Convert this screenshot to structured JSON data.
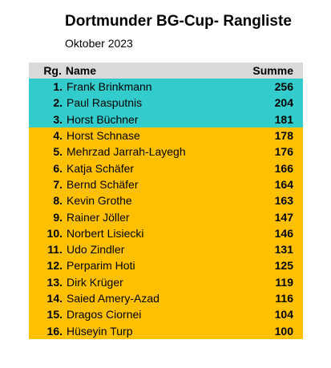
{
  "title": "Dortmunder BG-Cup- Rangliste",
  "subtitle": "Oktober 2023",
  "columns": {
    "rank": "Rg.",
    "name": "Name",
    "sum": "Summe"
  },
  "rows": [
    {
      "rank": "1.",
      "name": "Frank Brinkmann",
      "sum": "256"
    },
    {
      "rank": "2.",
      "name": "Paul Rasputnis",
      "sum": "204"
    },
    {
      "rank": "3.",
      "name": "Horst Büchner",
      "sum": "181"
    },
    {
      "rank": "4.",
      "name": "Horst Schnase",
      "sum": "178"
    },
    {
      "rank": "5.",
      "name": "Mehrzad Jarrah-Layegh",
      "sum": "176"
    },
    {
      "rank": "6.",
      "name": "Katja Schäfer",
      "sum": "166"
    },
    {
      "rank": "7.",
      "name": "Bernd Schäfer",
      "sum": "164"
    },
    {
      "rank": "8.",
      "name": "Kevin Grothe",
      "sum": "163"
    },
    {
      "rank": "9.",
      "name": "Rainer Jöller",
      "sum": "147"
    },
    {
      "rank": "10.",
      "name": "Norbert Lisiecki",
      "sum": "146"
    },
    {
      "rank": "11.",
      "name": "Udo Zindler",
      "sum": "131"
    },
    {
      "rank": "12.",
      "name": "Perparim Hoti",
      "sum": "125"
    },
    {
      "rank": "13.",
      "name": "Dirk Krüger",
      "sum": "119"
    },
    {
      "rank": "14.",
      "name": "Saied Amery-Azad",
      "sum": "116"
    },
    {
      "rank": "15.",
      "name": "Dragos Ciornei",
      "sum": "104"
    },
    {
      "rank": "16.",
      "name": "Hüseyin Turp",
      "sum": "100"
    }
  ],
  "colors": {
    "header": "#d9d9d9",
    "top3": "#33cccc",
    "others": "#ffc000"
  }
}
